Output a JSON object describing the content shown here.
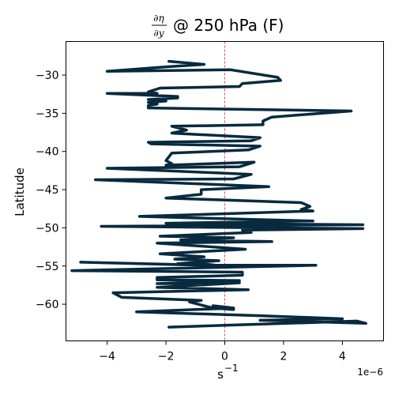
{
  "chart_data": {
    "type": "line",
    "title": {
      "frac_numerator": "∂η",
      "frac_denominator": "∂y",
      "text": "@ 250 hPa (F)"
    },
    "xlabel": {
      "base": "s",
      "exponent": "−1"
    },
    "ylabel": "Latitude",
    "x_offset_label": "1e−6",
    "xlim": [
      -5.4,
      5.4
    ],
    "ylim": [
      -64.8,
      -25.6
    ],
    "x_ticks": [
      -4,
      -2,
      0,
      2,
      4
    ],
    "x_tick_labels": [
      "−4",
      "−2",
      "0",
      "2",
      "4"
    ],
    "y_ticks": [
      -30,
      -35,
      -40,
      -45,
      -50,
      -55,
      -60
    ],
    "y_tick_labels": [
      "−30",
      "−35",
      "−40",
      "−45",
      "−50",
      "−55",
      "−60"
    ],
    "x_scale_multiplier": 1e-06,
    "grid": false,
    "reference_line": {
      "x": 0,
      "color": "#d62728",
      "style": "dashed"
    },
    "series": [
      {
        "color": "#082a3e",
        "x": [
          -1.9,
          -0.7,
          -1.9,
          -4.0,
          0.2,
          1.8,
          1.9,
          0.6,
          0.5,
          -2.2,
          -2.6,
          -2.3,
          -4.0,
          -1.6,
          -1.6,
          -2.6,
          -2.0,
          -2.6,
          -2.3,
          -2.6,
          -2.6,
          4.3,
          1.6,
          1.3,
          1.3,
          -1.8,
          -1.3,
          -1.8,
          1.2,
          0.9,
          -2.6,
          -2.5,
          1.2,
          0.8,
          -1.8,
          -2.0,
          -1.8,
          -2.0,
          1.0,
          0.5,
          -4.0,
          -0.3,
          0.9,
          0.3,
          -4.4,
          1.5,
          -0.8,
          -0.8,
          -2.0,
          2.6,
          2.9,
          2.6,
          3.0,
          -2.9,
          0.9,
          3.0,
          -2.0,
          4.7,
          -4.2,
          4.7,
          0.6,
          0.9,
          -2.2,
          0.3,
          -1.5,
          1.6,
          -2.3,
          0.7,
          -2.2,
          -0.7,
          -1.7,
          -0.2,
          -1.6,
          0.3,
          -4.9,
          -0.5,
          -0.8,
          -0.3,
          3.1,
          -5.2,
          0.6,
          0.6,
          -2.3,
          -2.3,
          0.5,
          -2.3,
          0.5,
          -2.3,
          0.8,
          -3.8,
          -3.5,
          -0.8,
          -1.2,
          -0.8,
          -0.4,
          0.3,
          -0.4,
          0.3,
          -3.0,
          1.2,
          4.0,
          1.2,
          4.8,
          4.5,
          -1.9
        ],
        "y": [
          -28.2,
          -28.6,
          -28.9,
          -29.5,
          -29.3,
          -30.3,
          -30.7,
          -31.1,
          -31.5,
          -31.7,
          -32.2,
          -32.4,
          -32.4,
          -32.8,
          -33.0,
          -33.2,
          -33.4,
          -33.6,
          -33.8,
          -34.0,
          -34.3,
          -34.7,
          -35.5,
          -36.0,
          -36.5,
          -36.7,
          -37.2,
          -37.6,
          -38.2,
          -38.6,
          -38.8,
          -39.0,
          -39.3,
          -39.8,
          -40.2,
          -41.2,
          -41.6,
          -41.8,
          -41.4,
          -42.0,
          -42.2,
          -42.8,
          -43.0,
          -43.6,
          -43.7,
          -44.6,
          -45.0,
          -45.6,
          -46.1,
          -46.7,
          -47.2,
          -47.6,
          -47.8,
          -48.5,
          -48.9,
          -49.1,
          -49.4,
          -49.6,
          -49.8,
          -50.1,
          -50.3,
          -50.6,
          -51.1,
          -51.3,
          -51.6,
          -51.8,
          -52.0,
          -52.8,
          -53.4,
          -53.8,
          -54.1,
          -54.3,
          -54.7,
          -55.0,
          -54.5,
          -54.9,
          -54.7,
          -54.9,
          -54.9,
          -55.6,
          -55.8,
          -56.2,
          -56.5,
          -56.8,
          -56.9,
          -57.3,
          -57.2,
          -57.8,
          -58.1,
          -58.5,
          -59.1,
          -59.5,
          -59.7,
          -60.1,
          -60.5,
          -60.7,
          -60.2,
          -60.5,
          -61.0,
          -61.5,
          -61.9,
          -62.1,
          -62.5,
          -62.2,
          -63.0
        ]
      }
    ]
  }
}
